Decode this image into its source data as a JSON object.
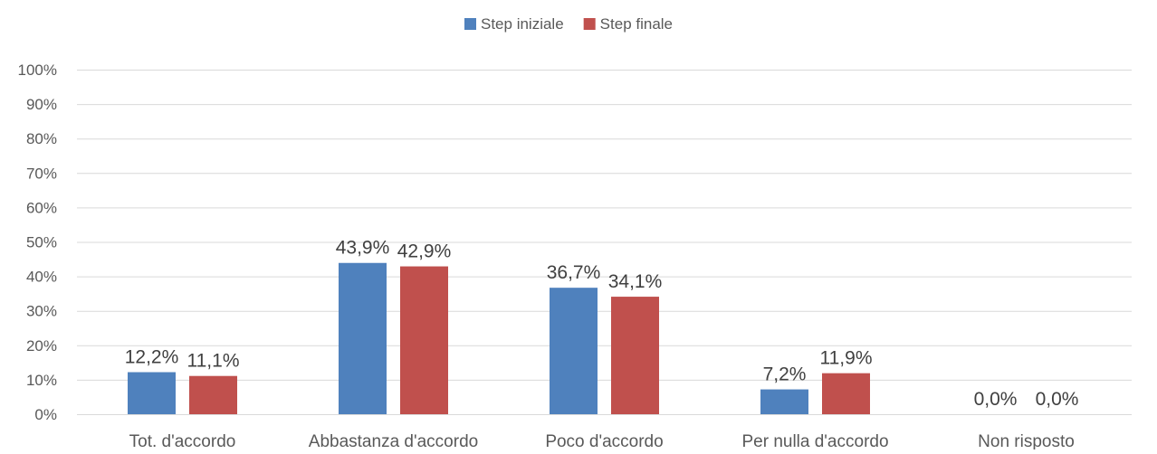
{
  "chart_data": {
    "type": "bar",
    "categories": [
      "Tot. d'accordo",
      "Abbastanza d'accordo",
      "Poco d'accordo",
      "Per nulla d'accordo",
      "Non risposto"
    ],
    "series": [
      {
        "name": "Step iniziale",
        "color": "#4F81BD",
        "values": [
          12.2,
          43.9,
          36.7,
          7.2,
          0.0
        ],
        "labels": [
          "12,2%",
          "43,9%",
          "36,7%",
          "7,2%",
          "0,0%"
        ]
      },
      {
        "name": "Step finale",
        "color": "#C0504D",
        "values": [
          11.1,
          42.9,
          34.1,
          11.9,
          0.0
        ],
        "labels": [
          "11,1%",
          "42,9%",
          "34,1%",
          "11,9%",
          "0,0%"
        ]
      }
    ],
    "y_ticks": [
      0,
      10,
      20,
      30,
      40,
      50,
      60,
      70,
      80,
      90,
      100
    ],
    "y_tick_labels": [
      "0%",
      "10%",
      "20%",
      "30%",
      "40%",
      "50%",
      "60%",
      "70%",
      "80%",
      "90%",
      "100%"
    ],
    "ylim": [
      0,
      100
    ],
    "grid": true,
    "legend_position": "top-center",
    "title": "",
    "xlabel": "",
    "ylabel": ""
  }
}
